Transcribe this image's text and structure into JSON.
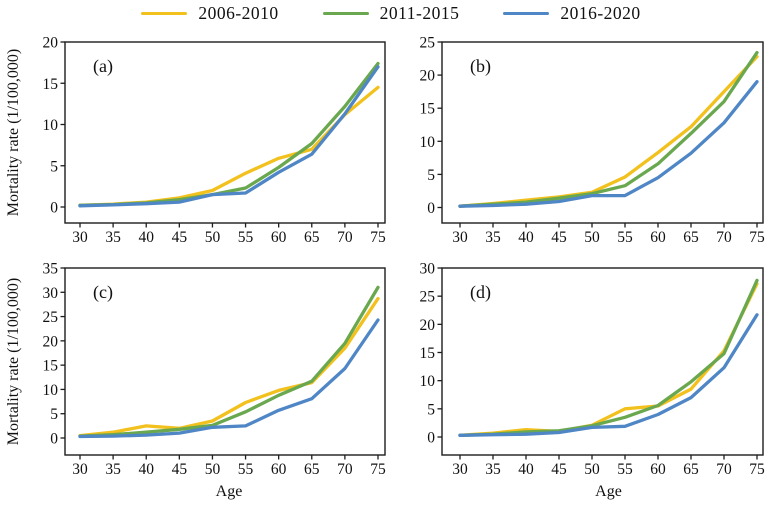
{
  "figure": {
    "legend": [
      {
        "label": "2006-2010",
        "color": "#F2C11D"
      },
      {
        "label": "2011-2015",
        "color": "#6AA84F"
      },
      {
        "label": "2016-2020",
        "color": "#4F86C5"
      }
    ]
  },
  "chart_data": {
    "type": "line",
    "xlabel": "Age",
    "ylabel": "Mortality rate (1/100,000)",
    "x": [
      30,
      35,
      40,
      45,
      50,
      55,
      60,
      65,
      70,
      75
    ],
    "xlim": [
      27.7,
      76.1
    ],
    "legend_position": "top-center",
    "grid": false,
    "panels": [
      {
        "label": "(a)",
        "yticks": [
          0,
          5,
          10,
          15,
          20
        ],
        "ylim": [
          -2,
          20
        ],
        "series": [
          {
            "name": "2006-2010",
            "values": [
              0.2,
              0.35,
              0.6,
              1.1,
              2.0,
              4.1,
              5.9,
              7.0,
              11.2,
              14.5
            ]
          },
          {
            "name": "2011-2015",
            "values": [
              0.2,
              0.3,
              0.5,
              0.9,
              1.5,
              2.3,
              4.8,
              7.7,
              12.2,
              17.4
            ]
          },
          {
            "name": "2016-2020",
            "values": [
              0.15,
              0.25,
              0.4,
              0.6,
              1.5,
              1.7,
              4.2,
              6.4,
              11.3,
              17.0
            ]
          }
        ]
      },
      {
        "label": "(b)",
        "yticks": [
          0,
          5,
          10,
          15,
          20,
          25
        ],
        "ylim": [
          -2.5,
          25
        ],
        "series": [
          {
            "name": "2006-2010",
            "values": [
              0.2,
              0.6,
              1.1,
              1.6,
              2.3,
              4.6,
              8.3,
              12.2,
              17.5,
              22.8
            ]
          },
          {
            "name": "2011-2015",
            "values": [
              0.2,
              0.5,
              0.8,
              1.4,
              2.1,
              3.3,
              6.6,
              11.2,
              16.0,
              23.4
            ]
          },
          {
            "name": "2016-2020",
            "values": [
              0.2,
              0.3,
              0.5,
              0.9,
              1.8,
              1.8,
              4.5,
              8.2,
              12.8,
              19.0
            ]
          }
        ]
      },
      {
        "label": "(c)",
        "yticks": [
          0,
          5,
          10,
          15,
          20,
          25,
          30,
          35
        ],
        "ylim": [
          -3.5,
          35
        ],
        "series": [
          {
            "name": "2006-2010",
            "values": [
              0.5,
              1.2,
              2.5,
              2.0,
              3.5,
              7.3,
              9.8,
              11.4,
              18.5,
              28.7
            ]
          },
          {
            "name": "2011-2015",
            "values": [
              0.4,
              0.7,
              1.2,
              1.8,
              2.6,
              5.4,
              8.8,
              11.7,
              19.5,
              31.0
            ]
          },
          {
            "name": "2016-2020",
            "values": [
              0.3,
              0.4,
              0.6,
              1.0,
              2.2,
              2.5,
              5.7,
              8.1,
              14.3,
              24.3
            ]
          }
        ]
      },
      {
        "label": "(d)",
        "yticks": [
          0,
          5,
          10,
          15,
          20,
          25,
          30
        ],
        "ylim": [
          -3.2,
          30
        ],
        "series": [
          {
            "name": "2006-2010",
            "values": [
              0.3,
              0.7,
              1.3,
              1.0,
              2.1,
              5.0,
              5.5,
              8.5,
              15.3,
              27.2
            ]
          },
          {
            "name": "2011-2015",
            "values": [
              0.3,
              0.5,
              0.9,
              1.1,
              2.0,
              3.5,
              5.6,
              9.8,
              14.8,
              27.8
            ]
          },
          {
            "name": "2016-2020",
            "values": [
              0.3,
              0.4,
              0.5,
              0.8,
              1.7,
              1.9,
              4.0,
              7.0,
              12.3,
              21.7
            ]
          }
        ]
      }
    ]
  }
}
